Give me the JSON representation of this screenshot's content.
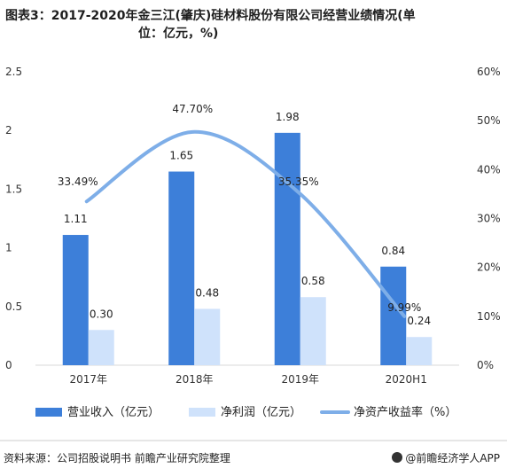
{
  "title_line1": "图表3：2017-2020年金三江(肇庆)硅材料股份有限公司经营业绩情况(单",
  "title_line2": "位：亿元，%)",
  "source": "资料来源：公司招股说明书 前瞻产业研究院整理",
  "brand": "@前瞻经济学人APP",
  "colors": {
    "revenue": "#3d7fd9",
    "profit": "#cfe2fb",
    "roe": "#7eaee8"
  },
  "chart_data": {
    "type": "bar",
    "categories": [
      "2017年",
      "2018年",
      "2019年",
      "2020H1"
    ],
    "series": [
      {
        "name": "营业收入（亿元）",
        "type": "bar",
        "axis": "left",
        "values": [
          1.11,
          1.65,
          1.98,
          0.84
        ],
        "labels": [
          "1.11",
          "1.65",
          "1.98",
          "0.84"
        ]
      },
      {
        "name": "净利润（亿元）",
        "type": "bar",
        "axis": "left",
        "values": [
          0.3,
          0.48,
          0.58,
          0.24
        ],
        "labels": [
          "0.30",
          "0.48",
          "0.58",
          "0.24"
        ]
      },
      {
        "name": "净资产收益率（%）",
        "type": "line",
        "axis": "right",
        "values": [
          33.49,
          47.7,
          35.35,
          9.99
        ],
        "labels": [
          "33.49%",
          "47.70%",
          "35.35%",
          "9.99%"
        ]
      }
    ],
    "ylim_left": [
      0,
      2.5
    ],
    "yticks_left": [
      "0",
      "0.5",
      "1",
      "1.5",
      "2",
      "2.5"
    ],
    "ylim_right": [
      0,
      60
    ],
    "yticks_right": [
      "0%",
      "10%",
      "20%",
      "30%",
      "40%",
      "50%",
      "60%"
    ],
    "legend_position": "bottom",
    "grid": false
  }
}
